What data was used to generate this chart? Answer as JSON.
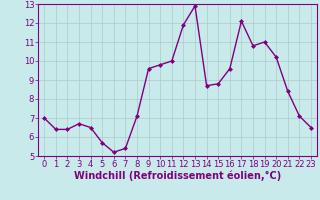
{
  "x": [
    0,
    1,
    2,
    3,
    4,
    5,
    6,
    7,
    8,
    9,
    10,
    11,
    12,
    13,
    14,
    15,
    16,
    17,
    18,
    19,
    20,
    21,
    22,
    23
  ],
  "y": [
    7.0,
    6.4,
    6.4,
    6.7,
    6.5,
    5.7,
    5.2,
    5.4,
    7.1,
    9.6,
    9.8,
    10.0,
    11.9,
    12.9,
    8.7,
    8.8,
    9.6,
    12.1,
    10.8,
    11.0,
    10.2,
    8.4,
    7.1,
    6.5
  ],
  "line_color": "#800080",
  "marker": "D",
  "marker_size": 2.0,
  "bg_color": "#c8eaea",
  "grid_color": "#b0c8c8",
  "xlabel": "Windchill (Refroidissement éolien,°C)",
  "xlabel_fontsize": 7.0,
  "xlabel_color": "#800080",
  "tick_color": "#800080",
  "ylim": [
    5,
    13
  ],
  "xlim": [
    -0.5,
    23.5
  ],
  "yticks": [
    5,
    6,
    7,
    8,
    9,
    10,
    11,
    12,
    13
  ],
  "xticks": [
    0,
    1,
    2,
    3,
    4,
    5,
    6,
    7,
    8,
    9,
    10,
    11,
    12,
    13,
    14,
    15,
    16,
    17,
    18,
    19,
    20,
    21,
    22,
    23
  ],
  "tick_fontsize": 6.0,
  "linewidth": 1.0
}
